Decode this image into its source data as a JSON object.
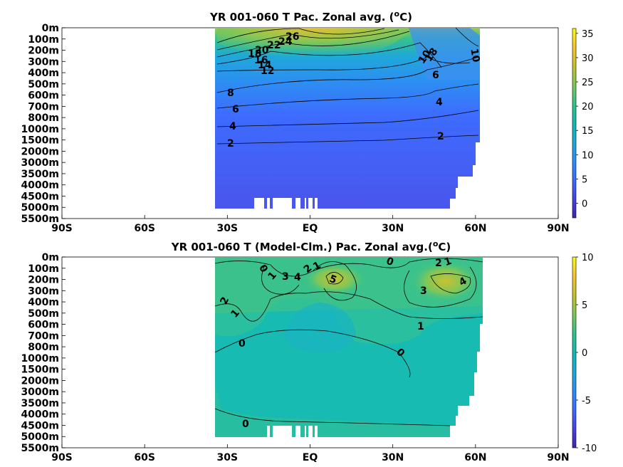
{
  "chart_data": [
    {
      "type": "heatmap",
      "subtype": "filled-contour",
      "title": "YR 001-060 T Pac. Zonal avg. (oC)",
      "title_text": "YR 001-060 T Pac. Zonal avg. (",
      "title_sup": "o",
      "title_end": "C)",
      "xticks": [
        "90S",
        "60S",
        "30S",
        "EQ",
        "30N",
        "60N",
        "90N"
      ],
      "yticks": [
        "0m",
        "100m",
        "200m",
        "300m",
        "400m",
        "500m",
        "600m",
        "700m",
        "800m",
        "1000m",
        "1500m",
        "2000m",
        "3000m",
        "3500m",
        "4000m",
        "4500m",
        "5000m",
        "5500m"
      ],
      "xlim": [
        -90,
        90
      ],
      "ylim": [
        0,
        5500
      ],
      "data_extent_lat": [
        -35,
        61
      ],
      "colorbar": {
        "min": -3,
        "max": 36,
        "ticks": [
          "35",
          "30",
          "25",
          "20",
          "15",
          "10",
          "5",
          "0"
        ]
      },
      "contour_labels": [
        "26",
        "24",
        "22",
        "20",
        "18",
        "16",
        "14",
        "12",
        "10",
        "8",
        "6",
        "4",
        "2",
        "18",
        "10",
        "6",
        "6",
        "4",
        "2"
      ],
      "colormap": [
        "#3e26a8",
        "#4743e3",
        "#3d6cfe",
        "#2d8ef2",
        "#1fa8d9",
        "#15b8b4",
        "#35c28a",
        "#7dc75a",
        "#c5c12f",
        "#f6c33a",
        "#f9fb15"
      ]
    },
    {
      "type": "heatmap",
      "subtype": "filled-contour",
      "title": "YR 001-060 T (Model-Clm.) Pac. Zonal avg.(oC)",
      "title_text": "YR 001-060 T (Model-Clm.) Pac. Zonal avg.(",
      "title_sup": "o",
      "title_end": "C)",
      "xticks": [
        "90S",
        "60S",
        "30S",
        "EQ",
        "30N",
        "60N",
        "90N"
      ],
      "yticks": [
        "0m",
        "100m",
        "200m",
        "300m",
        "400m",
        "500m",
        "600m",
        "700m",
        "800m",
        "1000m",
        "1500m",
        "2000m",
        "3000m",
        "3500m",
        "4000m",
        "4500m",
        "5000m",
        "5500m"
      ],
      "xlim": [
        -90,
        90
      ],
      "ylim": [
        0,
        5500
      ],
      "data_extent_lat": [
        -35,
        61
      ],
      "colorbar": {
        "min": -10,
        "max": 10,
        "ticks": [
          "10",
          "5",
          "0",
          "-5",
          "-10"
        ]
      },
      "contour_labels": [
        "0",
        "1",
        "2",
        "3",
        "4",
        "2",
        "1",
        "5",
        "0",
        "2",
        "1",
        "4",
        "3",
        "1",
        "2",
        "1",
        "0",
        "0",
        "0"
      ],
      "colormap": [
        "#3e26a8",
        "#4743e3",
        "#3d6cfe",
        "#2d8ef2",
        "#1fa8d9",
        "#15b8b4",
        "#35c28a",
        "#7dc75a",
        "#c5c12f",
        "#f6c33a",
        "#f9fb15"
      ]
    }
  ]
}
